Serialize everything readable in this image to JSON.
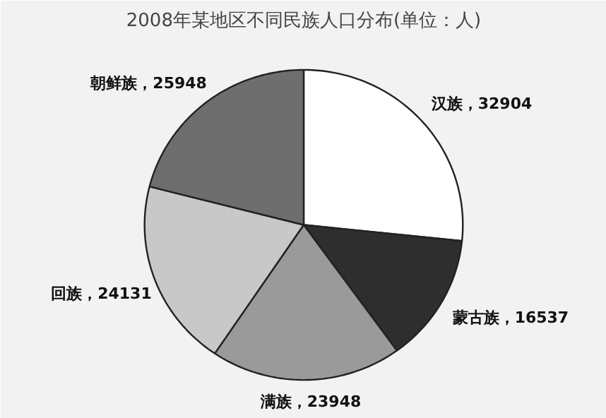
{
  "chart_data": {
    "type": "pie",
    "title": "2008年某地区不同民族人口分布(单位：人)",
    "categories": [
      "汉族",
      "蒙古族",
      "满族",
      "回族",
      "朝鲜族"
    ],
    "values": [
      32904,
      16537,
      23948,
      24131,
      25948
    ],
    "colors": [
      "#ffffff",
      "#2e2e2e",
      "#9a9a9a",
      "#c8c8c8",
      "#6e6e6e"
    ],
    "value_labels": [
      "，32904",
      "，16537",
      "，23948",
      "，24131",
      "，25948"
    ]
  }
}
